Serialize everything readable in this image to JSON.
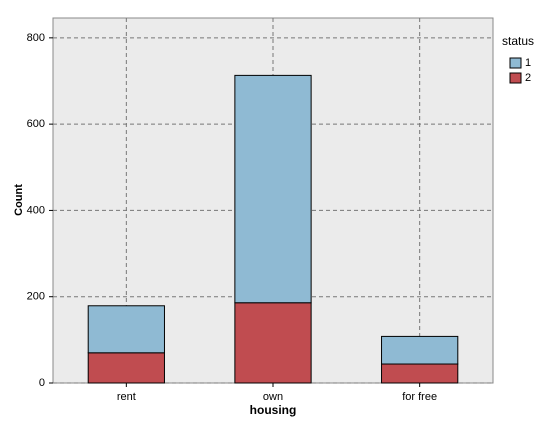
{
  "chart_data": {
    "type": "stacked_bar",
    "x_label": "housing",
    "y_label": "Count",
    "categories": [
      "rent",
      "own",
      "for free"
    ],
    "series": [
      {
        "name": "1",
        "color": "#8fbad3",
        "values": [
          109,
          527,
          64
        ]
      },
      {
        "name": "2",
        "color": "#c04c50",
        "values": [
          70,
          186,
          44
        ]
      }
    ],
    "ylim": [
      0,
      846
    ],
    "yticks": [
      0,
      200,
      400,
      600,
      800
    ],
    "grid": true,
    "legend_title": "status",
    "legend_position": "right"
  }
}
